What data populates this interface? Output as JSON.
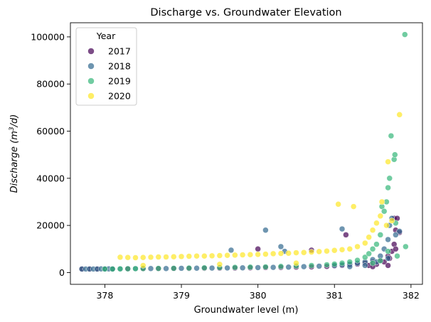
{
  "chart_data": {
    "type": "scatter",
    "title": "Discharge vs. Groundwater Elevation",
    "xlabel": "Groundwater level (m)",
    "ylabel_main": "Discharge (m",
    "ylabel_sup": "3",
    "ylabel_tail": "/d)",
    "xlim": [
      377.55,
      382.15
    ],
    "ylim": [
      -5000,
      106000
    ],
    "xticks": [
      {
        "value": 378,
        "label": "378"
      },
      {
        "value": 379,
        "label": "379"
      },
      {
        "value": 380,
        "label": "380"
      },
      {
        "value": 381,
        "label": "381"
      },
      {
        "value": 382,
        "label": "382"
      }
    ],
    "yticks": [
      {
        "value": 0,
        "label": "0"
      },
      {
        "value": 20000,
        "label": "20000"
      },
      {
        "value": 40000,
        "label": "40000"
      },
      {
        "value": 60000,
        "label": "60000"
      },
      {
        "value": 80000,
        "label": "80000"
      },
      {
        "value": 100000,
        "label": "100000"
      }
    ],
    "grid": false,
    "legend": {
      "title": "Year",
      "placement": "top-left"
    },
    "series": [
      {
        "name": "2017",
        "color": "#440154",
        "points": [
          [
            377.7,
            1500
          ],
          [
            377.8,
            1500
          ],
          [
            377.9,
            1500
          ],
          [
            378.0,
            1550
          ],
          [
            378.1,
            1550
          ],
          [
            378.3,
            1600
          ],
          [
            378.5,
            1650
          ],
          [
            378.7,
            1650
          ],
          [
            378.9,
            1700
          ],
          [
            379.1,
            1750
          ],
          [
            379.3,
            1800
          ],
          [
            379.5,
            1850
          ],
          [
            379.7,
            1900
          ],
          [
            379.9,
            2000
          ],
          [
            380.0,
            10000
          ],
          [
            380.1,
            2100
          ],
          [
            380.3,
            2200
          ],
          [
            380.5,
            2300
          ],
          [
            380.7,
            9500
          ],
          [
            380.7,
            2400
          ],
          [
            380.9,
            2600
          ],
          [
            381.0,
            2800
          ],
          [
            381.1,
            3000
          ],
          [
            381.15,
            16000
          ],
          [
            381.2,
            3300
          ],
          [
            381.3,
            3600
          ],
          [
            381.4,
            4000
          ],
          [
            381.45,
            3000
          ],
          [
            381.5,
            4500
          ],
          [
            381.55,
            3500
          ],
          [
            381.6,
            5200
          ],
          [
            381.65,
            4500
          ],
          [
            381.7,
            7000
          ],
          [
            381.72,
            6000
          ],
          [
            381.75,
            9000
          ],
          [
            381.78,
            12000
          ],
          [
            381.78,
            23000
          ],
          [
            381.8,
            18000
          ],
          [
            381.82,
            23000
          ],
          [
            381.8,
            10000
          ],
          [
            381.85,
            17000
          ],
          [
            381.7,
            3000
          ],
          [
            381.5,
            2500
          ]
        ]
      },
      {
        "name": "2018",
        "color": "#31688e",
        "points": [
          [
            377.7,
            1500
          ],
          [
            377.75,
            1500
          ],
          [
            377.8,
            1500
          ],
          [
            377.85,
            1500
          ],
          [
            377.9,
            1500
          ],
          [
            377.95,
            1550
          ],
          [
            378.0,
            1550
          ],
          [
            378.05,
            1550
          ],
          [
            378.1,
            1550
          ],
          [
            378.2,
            1600
          ],
          [
            378.4,
            1650
          ],
          [
            378.6,
            1700
          ],
          [
            378.8,
            1700
          ],
          [
            379.0,
            1800
          ],
          [
            379.2,
            1850
          ],
          [
            379.4,
            1900
          ],
          [
            379.6,
            1950
          ],
          [
            379.65,
            9500
          ],
          [
            379.8,
            2000
          ],
          [
            380.0,
            2100
          ],
          [
            380.1,
            18000
          ],
          [
            380.2,
            2200
          ],
          [
            380.3,
            11000
          ],
          [
            380.35,
            9000
          ],
          [
            380.4,
            2300
          ],
          [
            380.6,
            2500
          ],
          [
            380.8,
            2700
          ],
          [
            381.0,
            3000
          ],
          [
            381.1,
            3300
          ],
          [
            381.1,
            18500
          ],
          [
            381.2,
            3600
          ],
          [
            381.3,
            4000
          ],
          [
            381.4,
            4600
          ],
          [
            381.5,
            5500
          ],
          [
            381.55,
            4500
          ],
          [
            381.6,
            7000
          ],
          [
            381.65,
            10000
          ],
          [
            381.7,
            14000
          ],
          [
            381.7,
            6000
          ],
          [
            381.72,
            20000
          ],
          [
            381.75,
            23000
          ],
          [
            381.8,
            16000
          ],
          [
            381.85,
            17500
          ],
          [
            381.4,
            3000
          ],
          [
            381.2,
            2500
          ]
        ]
      },
      {
        "name": "2019",
        "color": "#35b779",
        "points": [
          [
            378.0,
            1500
          ],
          [
            378.1,
            1500
          ],
          [
            378.2,
            1550
          ],
          [
            378.3,
            1600
          ],
          [
            378.4,
            1650
          ],
          [
            378.5,
            1700
          ],
          [
            378.7,
            1750
          ],
          [
            378.9,
            1800
          ],
          [
            379.1,
            1900
          ],
          [
            379.3,
            2000
          ],
          [
            379.5,
            2100
          ],
          [
            379.7,
            2200
          ],
          [
            379.9,
            2300
          ],
          [
            380.1,
            2400
          ],
          [
            380.3,
            2600
          ],
          [
            380.5,
            2800
          ],
          [
            380.7,
            3000
          ],
          [
            380.9,
            3300
          ],
          [
            381.0,
            3600
          ],
          [
            381.1,
            4000
          ],
          [
            381.2,
            4500
          ],
          [
            381.3,
            5200
          ],
          [
            381.4,
            6500
          ],
          [
            381.45,
            8000
          ],
          [
            381.5,
            10000
          ],
          [
            381.55,
            12000
          ],
          [
            381.6,
            16000
          ],
          [
            381.62,
            28000
          ],
          [
            381.65,
            26000
          ],
          [
            381.68,
            30000
          ],
          [
            381.7,
            36000
          ],
          [
            381.72,
            40000
          ],
          [
            381.74,
            58000
          ],
          [
            381.78,
            48000
          ],
          [
            381.79,
            50000
          ],
          [
            381.8,
            21000
          ],
          [
            381.82,
            7000
          ],
          [
            381.92,
            101000
          ],
          [
            381.93,
            11000
          ],
          [
            381.5,
            4000
          ],
          [
            381.6,
            5000
          ],
          [
            381.7,
            9000
          ]
        ]
      },
      {
        "name": "2020",
        "color": "#fde725",
        "points": [
          [
            378.2,
            6500
          ],
          [
            378.3,
            6400
          ],
          [
            378.4,
            6300
          ],
          [
            378.5,
            6400
          ],
          [
            378.6,
            6500
          ],
          [
            378.7,
            6600
          ],
          [
            378.8,
            6600
          ],
          [
            378.9,
            6700
          ],
          [
            379.0,
            6800
          ],
          [
            379.1,
            6900
          ],
          [
            379.2,
            7000
          ],
          [
            379.3,
            7000
          ],
          [
            379.4,
            7100
          ],
          [
            379.5,
            7200
          ],
          [
            379.6,
            7300
          ],
          [
            379.7,
            7400
          ],
          [
            379.8,
            7500
          ],
          [
            379.9,
            7600
          ],
          [
            380.0,
            7700
          ],
          [
            380.1,
            7800
          ],
          [
            380.2,
            8000
          ],
          [
            380.3,
            8100
          ],
          [
            380.4,
            8200
          ],
          [
            380.5,
            8400
          ],
          [
            380.6,
            8500
          ],
          [
            380.7,
            8700
          ],
          [
            380.8,
            8900
          ],
          [
            380.9,
            9100
          ],
          [
            381.0,
            9400
          ],
          [
            381.05,
            29000
          ],
          [
            381.1,
            9700
          ],
          [
            381.2,
            10000
          ],
          [
            381.25,
            28000
          ],
          [
            381.3,
            11000
          ],
          [
            381.4,
            12500
          ],
          [
            381.45,
            15000
          ],
          [
            381.5,
            18000
          ],
          [
            381.55,
            21000
          ],
          [
            381.6,
            24000
          ],
          [
            381.62,
            30000
          ],
          [
            381.68,
            20000
          ],
          [
            381.7,
            47000
          ],
          [
            381.75,
            22000
          ],
          [
            381.85,
            67000
          ],
          [
            380.5,
            4000
          ],
          [
            379.5,
            3500
          ],
          [
            378.5,
            3000
          ]
        ]
      }
    ]
  }
}
